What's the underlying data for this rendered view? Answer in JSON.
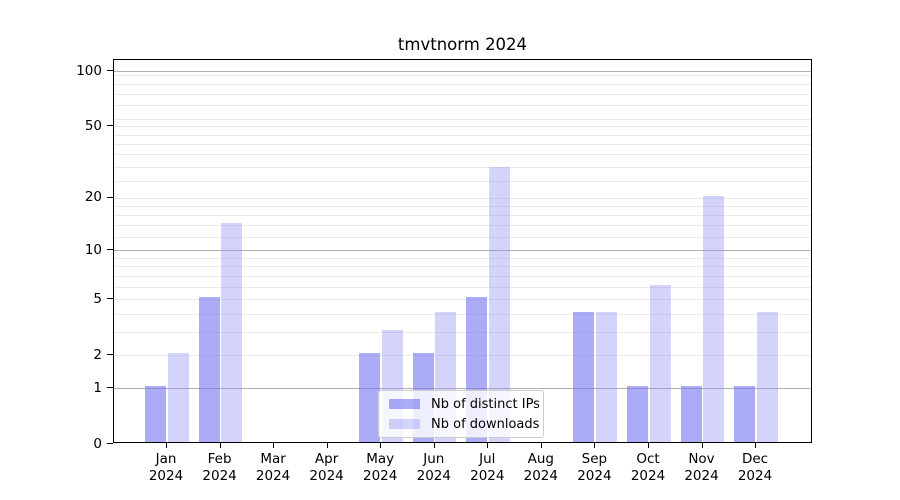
{
  "chart_data": {
    "type": "bar",
    "title": "tmvtnorm 2024",
    "categories": [
      "Jan",
      "Feb",
      "Mar",
      "Apr",
      "May",
      "Jun",
      "Jul",
      "Aug",
      "Sep",
      "Oct",
      "Nov",
      "Dec"
    ],
    "category_year": "2024",
    "series": [
      {
        "name": "Nb of distinct IPs",
        "color": "rgba(115,115,242,0.60)",
        "values": [
          1,
          5,
          0,
          0,
          2,
          2,
          5,
          0,
          4,
          1,
          1,
          1
        ]
      },
      {
        "name": "Nb of downloads",
        "color": "rgba(140,140,245,0.38)",
        "values": [
          2,
          14,
          0,
          0,
          3,
          4,
          29,
          0,
          4,
          6,
          20,
          4
        ]
      }
    ],
    "scale": "log1p",
    "ylim": [
      0,
      115
    ],
    "yticks": [
      0,
      1,
      2,
      5,
      10,
      20,
      50,
      100
    ],
    "major_gridlines": [
      1,
      10,
      100
    ],
    "minor_gridlines": [
      2,
      3,
      4,
      5,
      6,
      7,
      8,
      9,
      12,
      14,
      16,
      18,
      20,
      25,
      30,
      35,
      40,
      45,
      50,
      55,
      65,
      75,
      85,
      95
    ],
    "grid": true,
    "legend_position": "lower center",
    "colors": {
      "major_grid": "#b0b0b0",
      "minor_grid": "#ebebeb",
      "axis": "#000000",
      "background": "#ffffff"
    }
  }
}
